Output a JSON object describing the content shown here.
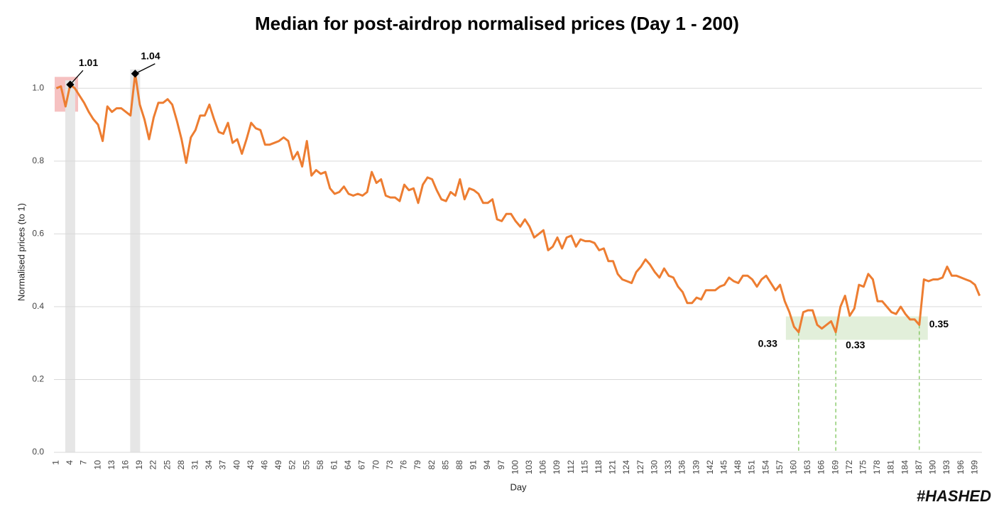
{
  "chart_data": {
    "type": "line",
    "title": "Median for post-airdrop normalised prices (Day 1 - 200)",
    "x_label": "Day",
    "y_label": "Normalised prices (to 1)",
    "watermark": "#HASHED",
    "color": "#ed7d31",
    "grid": true,
    "x": [
      1,
      2,
      3,
      4,
      5,
      6,
      7,
      8,
      9,
      10,
      11,
      12,
      13,
      14,
      15,
      16,
      17,
      18,
      19,
      20,
      21,
      22,
      23,
      24,
      25,
      26,
      27,
      28,
      29,
      30,
      31,
      32,
      33,
      34,
      35,
      36,
      37,
      38,
      39,
      40,
      41,
      42,
      43,
      44,
      45,
      46,
      47,
      48,
      49,
      50,
      51,
      52,
      53,
      54,
      55,
      56,
      57,
      58,
      59,
      60,
      61,
      62,
      63,
      64,
      65,
      66,
      67,
      68,
      69,
      70,
      71,
      72,
      73,
      74,
      75,
      76,
      77,
      78,
      79,
      80,
      81,
      82,
      83,
      84,
      85,
      86,
      87,
      88,
      89,
      90,
      91,
      92,
      93,
      94,
      95,
      96,
      97,
      98,
      99,
      100,
      101,
      102,
      103,
      104,
      105,
      106,
      107,
      108,
      109,
      110,
      111,
      112,
      113,
      114,
      115,
      116,
      117,
      118,
      119,
      120,
      121,
      122,
      123,
      124,
      125,
      126,
      127,
      128,
      129,
      130,
      131,
      132,
      133,
      134,
      135,
      136,
      137,
      138,
      139,
      140,
      141,
      142,
      143,
      144,
      145,
      146,
      147,
      148,
      149,
      150,
      151,
      152,
      153,
      154,
      155,
      156,
      157,
      158,
      159,
      160,
      161,
      162,
      163,
      164,
      165,
      166,
      167,
      168,
      169,
      170,
      171,
      172,
      173,
      174,
      175,
      176,
      177,
      178,
      179,
      180,
      181,
      182,
      183,
      184,
      185,
      186,
      187,
      188,
      189,
      190,
      191,
      192,
      193,
      194,
      195,
      196,
      197,
      198,
      199,
      200
    ],
    "values": [
      1.0,
      1.005,
      0.95,
      1.01,
      1.0,
      0.98,
      0.96,
      0.935,
      0.915,
      0.9,
      0.855,
      0.95,
      0.935,
      0.945,
      0.945,
      0.935,
      0.925,
      1.04,
      0.955,
      0.915,
      0.86,
      0.92,
      0.96,
      0.96,
      0.97,
      0.955,
      0.91,
      0.86,
      0.795,
      0.865,
      0.885,
      0.925,
      0.925,
      0.955,
      0.915,
      0.88,
      0.875,
      0.905,
      0.85,
      0.86,
      0.82,
      0.86,
      0.905,
      0.89,
      0.885,
      0.845,
      0.845,
      0.85,
      0.855,
      0.865,
      0.855,
      0.805,
      0.825,
      0.785,
      0.855,
      0.76,
      0.775,
      0.765,
      0.77,
      0.725,
      0.71,
      0.715,
      0.73,
      0.71,
      0.705,
      0.71,
      0.705,
      0.715,
      0.77,
      0.74,
      0.75,
      0.705,
      0.7,
      0.7,
      0.69,
      0.735,
      0.72,
      0.725,
      0.685,
      0.735,
      0.755,
      0.75,
      0.72,
      0.695,
      0.69,
      0.715,
      0.705,
      0.75,
      0.695,
      0.725,
      0.72,
      0.71,
      0.685,
      0.685,
      0.695,
      0.64,
      0.635,
      0.655,
      0.655,
      0.635,
      0.62,
      0.64,
      0.62,
      0.59,
      0.6,
      0.61,
      0.555,
      0.565,
      0.59,
      0.56,
      0.59,
      0.595,
      0.565,
      0.585,
      0.58,
      0.58,
      0.575,
      0.555,
      0.56,
      0.525,
      0.525,
      0.49,
      0.475,
      0.47,
      0.465,
      0.495,
      0.51,
      0.53,
      0.515,
      0.495,
      0.48,
      0.505,
      0.485,
      0.48,
      0.455,
      0.44,
      0.41,
      0.41,
      0.425,
      0.42,
      0.445,
      0.445,
      0.445,
      0.455,
      0.46,
      0.48,
      0.47,
      0.465,
      0.485,
      0.485,
      0.475,
      0.455,
      0.475,
      0.485,
      0.465,
      0.445,
      0.46,
      0.415,
      0.385,
      0.345,
      0.33,
      0.385,
      0.39,
      0.39,
      0.35,
      0.34,
      0.35,
      0.36,
      0.33,
      0.4,
      0.43,
      0.375,
      0.395,
      0.46,
      0.455,
      0.49,
      0.475,
      0.415,
      0.415,
      0.4,
      0.385,
      0.38,
      0.4,
      0.38,
      0.365,
      0.365,
      0.35,
      0.475,
      0.47,
      0.475,
      0.475,
      0.48,
      0.51,
      0.485,
      0.485,
      0.48,
      0.475,
      0.47,
      0.46,
      0.43
    ],
    "xlim": [
      0.5,
      200.5
    ],
    "xticks": [
      1,
      4,
      7,
      10,
      13,
      16,
      19,
      22,
      25,
      28,
      31,
      34,
      37,
      40,
      43,
      46,
      49,
      52,
      55,
      58,
      61,
      64,
      67,
      70,
      73,
      76,
      79,
      82,
      85,
      88,
      91,
      94,
      97,
      100,
      103,
      106,
      109,
      112,
      115,
      118,
      121,
      124,
      127,
      130,
      133,
      136,
      139,
      142,
      145,
      148,
      151,
      154,
      157,
      160,
      163,
      166,
      169,
      172,
      175,
      178,
      181,
      184,
      187,
      190,
      193,
      196,
      199
    ],
    "ylim": [
      0,
      1.1
    ],
    "yticks": [
      {
        "value": 0,
        "label": "0.0"
      },
      0.2,
      0.4,
      0.6,
      0.8,
      {
        "value": 1,
        "label": "1.0"
      }
    ],
    "annotations": [
      {
        "x": 4,
        "value": 1.01,
        "label": "1.01"
      },
      {
        "x": 18,
        "value": 1.04,
        "label": "1.04"
      },
      {
        "x": 161,
        "value": 0.33,
        "label": "0.33"
      },
      {
        "x": 169,
        "value": 0.33,
        "label": "0.33"
      },
      {
        "x": 187,
        "value": 0.35,
        "label": "0.35"
      }
    ]
  }
}
